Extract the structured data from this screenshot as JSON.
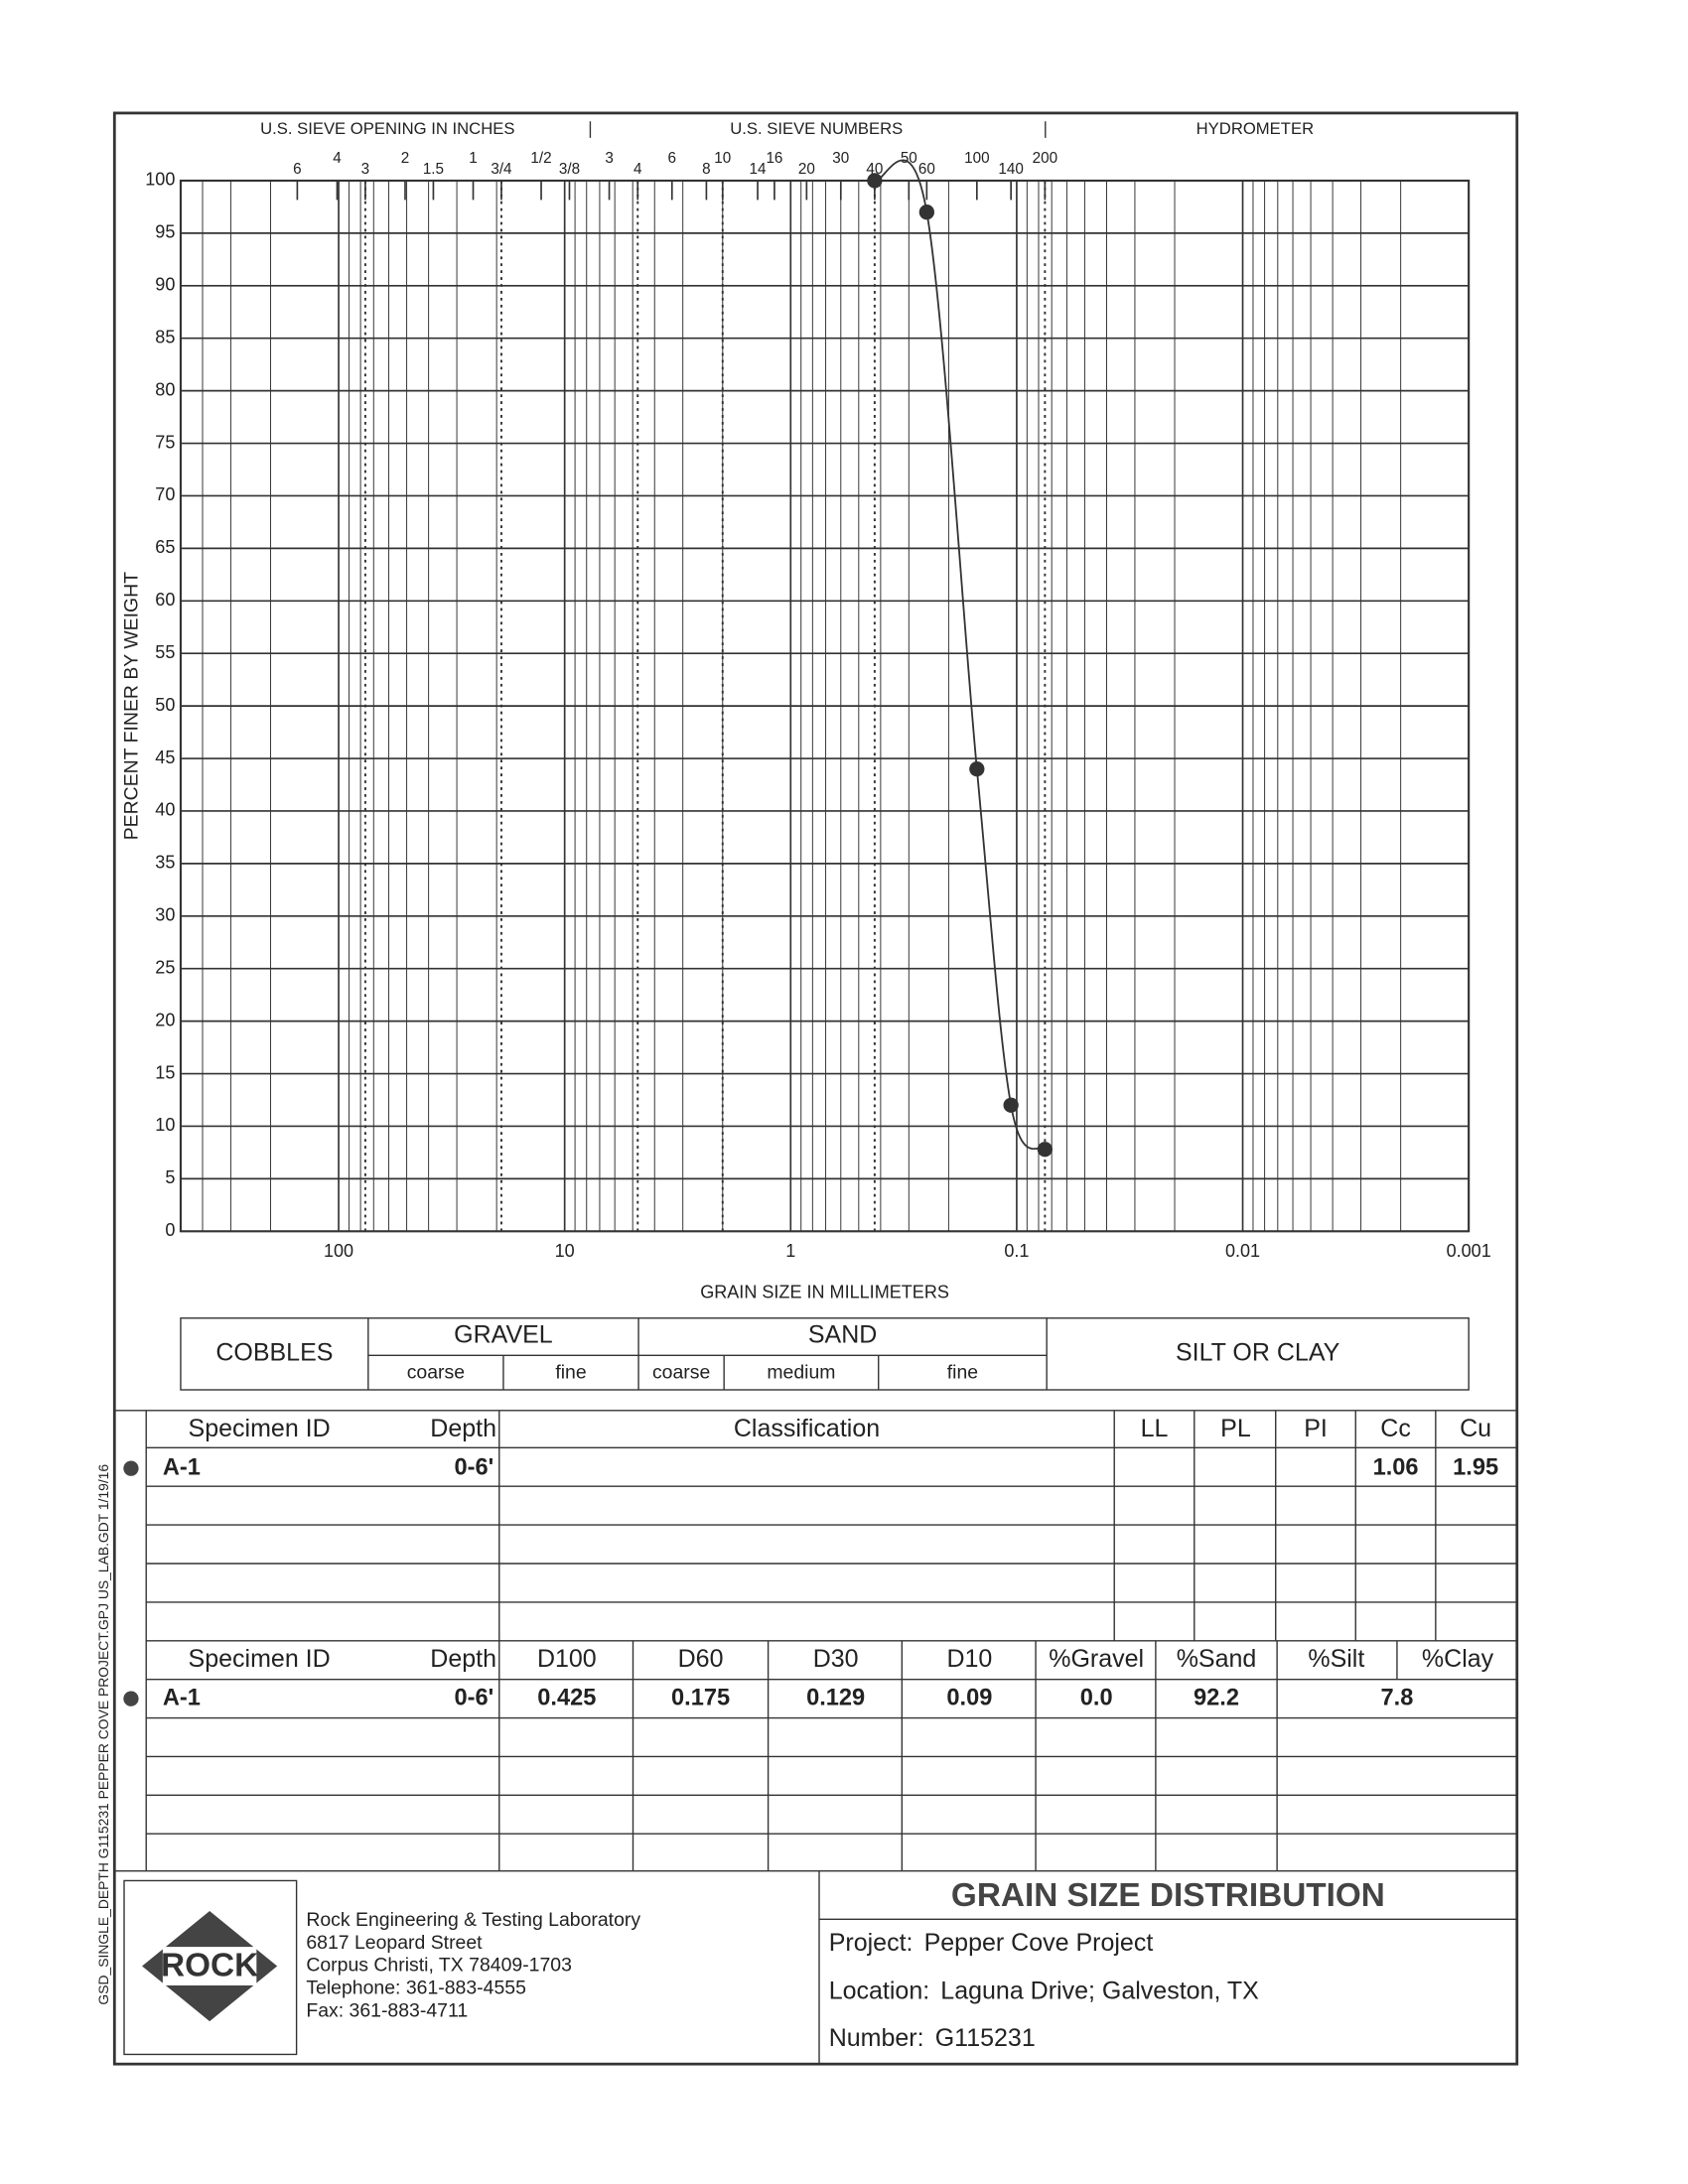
{
  "chart_data": {
    "type": "line",
    "top_headers": [
      "U.S. SIEVE OPENING IN INCHES",
      "U.S. SIEVE NUMBERS",
      "HYDROMETER"
    ],
    "x_label": "GRAIN SIZE IN MILLIMETERS",
    "y_label": "PERCENT FINER BY WEIGHT",
    "x": [
      0.425,
      0.25,
      0.15,
      0.106,
      0.075
    ],
    "values": [
      100,
      97,
      44,
      12,
      7.8
    ],
    "color": "#333333",
    "x_log": true,
    "xlim": [
      500,
      0.001
    ],
    "xticks": [
      100,
      10,
      1,
      0.1,
      0.01,
      0.001
    ],
    "ylim": [
      0,
      100
    ],
    "yticks": [
      0,
      5,
      10,
      15,
      20,
      25,
      30,
      35,
      40,
      45,
      50,
      55,
      60,
      65,
      70,
      75,
      80,
      85,
      90,
      95,
      100
    ],
    "grid": true,
    "sieve_ticks": [
      {
        "value": 152.4,
        "label": "6"
      },
      {
        "value": 101.6,
        "label": "4"
      },
      {
        "value": 76.2,
        "label": "3"
      },
      {
        "value": 50.8,
        "label": "2"
      },
      {
        "value": 38.1,
        "label": "1.5"
      },
      {
        "value": 25.4,
        "label": "1"
      },
      {
        "value": 19.05,
        "label": "3/4"
      },
      {
        "value": 12.7,
        "label": "1/2"
      },
      {
        "value": 9.525,
        "label": "3/8"
      },
      {
        "value": 6.35,
        "label": "3"
      },
      {
        "value": 4.75,
        "label": "4"
      },
      {
        "value": 3.35,
        "label": "6"
      },
      {
        "value": 2.36,
        "label": "8"
      },
      {
        "value": 2.0,
        "label": "10"
      },
      {
        "value": 1.4,
        "label": "14"
      },
      {
        "value": 1.18,
        "label": "16"
      },
      {
        "value": 0.85,
        "label": "20"
      },
      {
        "value": 0.6,
        "label": "30"
      },
      {
        "value": 0.425,
        "label": "40"
      },
      {
        "value": 0.3,
        "label": "50"
      },
      {
        "value": 0.25,
        "label": "60"
      },
      {
        "value": 0.15,
        "label": "100"
      },
      {
        "value": 0.106,
        "label": "140"
      },
      {
        "value": 0.075,
        "label": "200"
      }
    ],
    "boundaries": [
      76.2,
      19.05,
      4.75,
      2.0,
      0.425,
      0.075
    ]
  },
  "soil_classes": {
    "cobbles": "COBBLES",
    "gravel": "GRAVEL",
    "sand": "SAND",
    "silt_clay": "SILT OR CLAY",
    "gravel_coarse": "coarse",
    "gravel_fine": "fine",
    "sand_coarse": "coarse",
    "sand_medium": "medium",
    "sand_fine": "fine"
  },
  "table1": {
    "headers": [
      "Specimen ID",
      "Depth",
      "Classification",
      "LL",
      "PL",
      "PI",
      "Cc",
      "Cu"
    ],
    "rows": [
      {
        "specimen_id": "A-1",
        "depth": "0-6'",
        "cc": "1.06",
        "cu": "1.95"
      }
    ]
  },
  "table2": {
    "headers": [
      "Specimen ID",
      "Depth",
      "D100",
      "D60",
      "D30",
      "D10",
      "%Gravel",
      "%Sand",
      "%Silt",
      "%Clay"
    ],
    "rows": [
      {
        "specimen_id": "A-1",
        "depth": "0-6'",
        "d100": "0.425",
        "d60": "0.175",
        "d30": "0.129",
        "d10": "0.09",
        "gravel": "0.0",
        "sand": "92.2",
        "silt_clay": "7.8"
      }
    ]
  },
  "footer": {
    "logo": "ROCK",
    "company": [
      "Rock Engineering & Testing Laboratory",
      "6817 Leopard Street",
      "Corpus Christi, TX 78409-1703",
      "Telephone:  361-883-4555",
      "Fax:  361-883-4711"
    ],
    "title": "GRAIN SIZE DISTRIBUTION",
    "project_label": "Project:",
    "project": "Pepper Cove Project",
    "location_label": "Location:",
    "location": "Laguna Drive; Galveston, TX",
    "number_label": "Number:",
    "number": "G115231"
  },
  "side_note": "GSD_SINGLE_DEPTH  G115231 PEPPER COVE PROJECT.GPJ  US_LAB.GDT  1/19/16"
}
